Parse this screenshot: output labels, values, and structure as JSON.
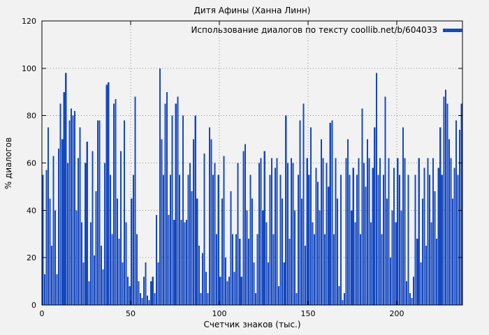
{
  "chart_data": {
    "type": "bar",
    "title": "Дитя Афины (Ханна Линн)",
    "legend": "Использование диалогов по тексту coollib.net/b/604033",
    "xlabel": "Счетчик знаков (тыс.)",
    "ylabel": "% диалогов",
    "xlim": [
      0,
      237
    ],
    "ylim": [
      0,
      120
    ],
    "xticks": [
      0,
      50,
      100,
      150,
      200
    ],
    "yticks": [
      0,
      20,
      40,
      60,
      80,
      100,
      120
    ],
    "grid": true,
    "legend_position": "top-right",
    "bar_color": "#1548c0",
    "x_step": 1,
    "values": [
      55,
      13,
      57,
      75,
      45,
      25,
      63,
      40,
      13,
      66,
      85,
      70,
      90,
      98,
      60,
      78,
      83,
      80,
      82,
      40,
      62,
      75,
      35,
      18,
      60,
      69,
      10,
      35,
      65,
      21,
      48,
      78,
      78,
      25,
      15,
      60,
      93,
      94,
      55,
      30,
      85,
      87,
      45,
      28,
      65,
      18,
      78,
      35,
      12,
      8,
      45,
      55,
      88,
      30,
      10,
      5,
      3,
      12,
      18,
      4,
      2,
      10,
      12,
      5,
      38,
      18,
      100,
      70,
      55,
      85,
      90,
      38,
      55,
      80,
      36,
      85,
      88,
      55,
      36,
      80,
      35,
      36,
      55,
      60,
      48,
      70,
      80,
      45,
      25,
      5,
      22,
      64,
      14,
      5,
      75,
      70,
      55,
      60,
      30,
      55,
      12,
      45,
      63,
      20,
      10,
      12,
      48,
      30,
      14,
      30,
      60,
      28,
      12,
      65,
      68,
      40,
      28,
      55,
      45,
      18,
      5,
      30,
      60,
      62,
      40,
      65,
      35,
      18,
      55,
      62,
      30,
      58,
      62,
      8,
      55,
      45,
      18,
      80,
      60,
      28,
      62,
      60,
      40,
      5,
      55,
      78,
      45,
      85,
      25,
      62,
      55,
      75,
      35,
      30,
      58,
      52,
      40,
      70,
      62,
      30,
      60,
      50,
      77,
      78,
      30,
      62,
      45,
      8,
      55,
      2,
      5,
      62,
      70,
      55,
      40,
      58,
      35,
      55,
      62,
      30,
      83,
      60,
      50,
      70,
      62,
      35,
      58,
      75,
      98,
      55,
      62,
      30,
      55,
      88,
      45,
      62,
      20,
      40,
      58,
      35,
      62,
      55,
      40,
      75,
      62,
      10,
      55,
      5,
      3,
      12,
      55,
      28,
      62,
      18,
      45,
      58,
      25,
      62,
      55,
      35,
      62,
      48,
      28,
      58,
      75,
      55,
      88,
      91,
      85,
      70,
      62,
      45,
      58,
      78,
      55,
      74,
      85
    ]
  }
}
